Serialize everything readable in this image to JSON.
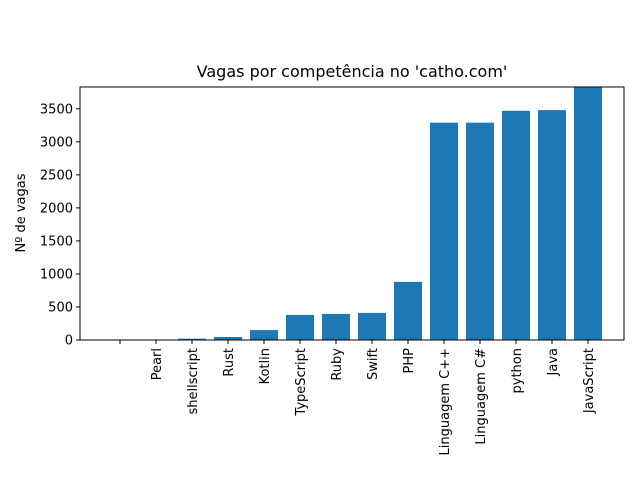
{
  "chart_data": {
    "type": "bar",
    "title": "Vagas por competência no 'catho.com'",
    "xlabel": "",
    "ylabel": "Nº de vagas",
    "categories": [
      "",
      "Pearl",
      "shellscript",
      "Rust",
      "Kotlin",
      "TypeScript",
      "Ruby",
      "Swift",
      "PHP",
      "Linguagem C++",
      "Linguagem C#",
      "python",
      "Java",
      "JavaScript"
    ],
    "values": [
      0,
      5,
      20,
      45,
      150,
      380,
      395,
      410,
      880,
      3290,
      3290,
      3470,
      3480,
      3830
    ],
    "ylim": [
      0,
      3830
    ],
    "yticks": [
      0,
      500,
      1000,
      1500,
      2000,
      2500,
      3000,
      3500
    ],
    "bar_color": "#1f77b4",
    "grid": false,
    "legend": "none"
  }
}
